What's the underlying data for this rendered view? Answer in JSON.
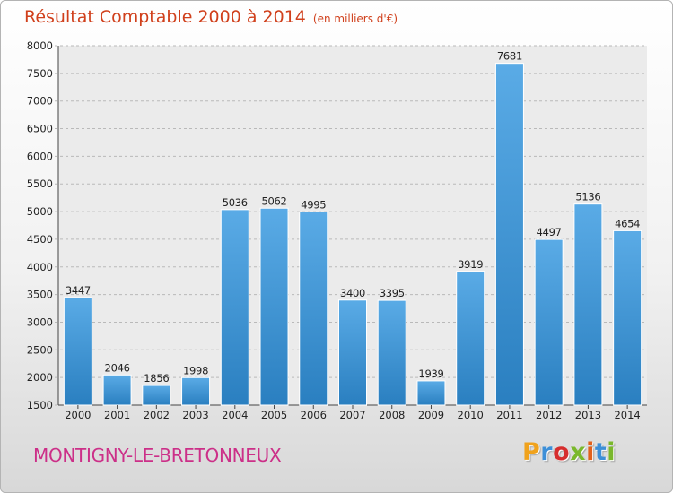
{
  "chart": {
    "title": "Résultat Comptable 2000 à 2014",
    "subtitle": "(en milliers d'€)",
    "commune": "MONTIGNY-LE-BRETONNEUX",
    "brand": "Proxiti",
    "colors": {
      "title": "#d0401c",
      "commune": "#cc2f88",
      "bar_top": "#5aabe6",
      "bar_bottom": "#2a7fc0"
    },
    "logo_colors": [
      "#f0a21c",
      "#3d8fd8",
      "#d62e2e",
      "#7ab82c",
      "#e2611c",
      "#3d8fd8",
      "#7ab82c"
    ]
  },
  "chart_data": {
    "type": "bar",
    "title": "Résultat Comptable 2000 à 2014",
    "subtitle": "(en milliers d'€)",
    "categories": [
      "2000",
      "2001",
      "2002",
      "2003",
      "2004",
      "2005",
      "2006",
      "2007",
      "2008",
      "2009",
      "2010",
      "2011",
      "2012",
      "2013",
      "2014"
    ],
    "values": [
      3447,
      2046,
      1856,
      1998,
      5036,
      5062,
      4995,
      3400,
      3395,
      1939,
      3919,
      7681,
      4497,
      5136,
      4654
    ],
    "ylim": [
      1500,
      8000
    ],
    "yticks": [
      1500,
      2000,
      2500,
      3000,
      3500,
      4000,
      4500,
      5000,
      5500,
      6000,
      6500,
      7000,
      7500,
      8000
    ],
    "grid": true,
    "data_labels": true
  }
}
